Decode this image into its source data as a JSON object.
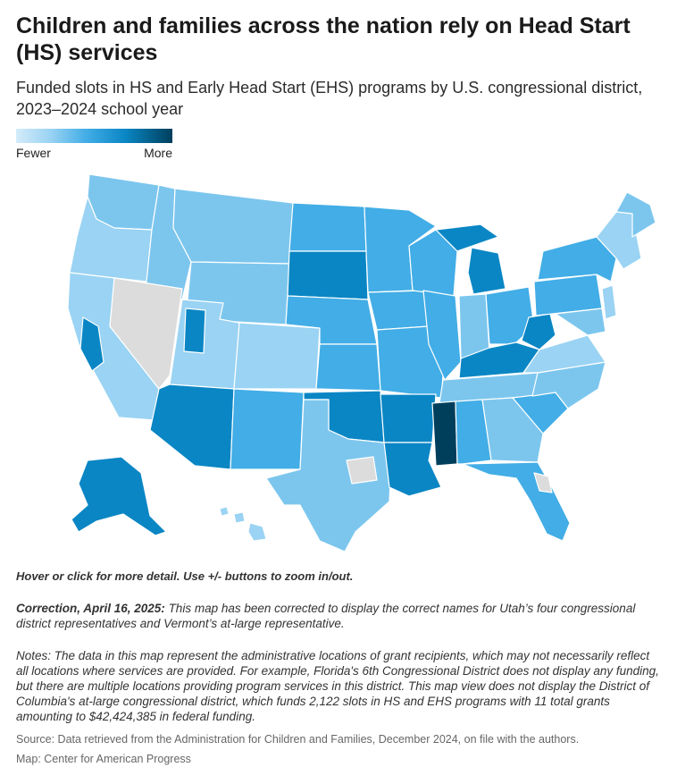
{
  "title": "Children and families across the nation rely on Head Start (HS) services",
  "subtitle": "Funded slots in HS and Early Head Start (EHS) programs by U.S. congressional district, 2023–2024 school year",
  "legend": {
    "low_label": "Fewer",
    "high_label": "More",
    "colors": [
      "#d4ecfa",
      "#9ad3f3",
      "#42ade6",
      "#0a86c4",
      "#003f5c"
    ],
    "no_data_color": "#dcdcdc"
  },
  "instructions": "Hover or click for more detail. Use +/- buttons to zoom in/out.",
  "correction": {
    "label": "Correction, April 16, 2025:",
    "text": " This map has been corrected to display the correct names for Utah’s four congressional district representatives and Vermont’s at-large representative."
  },
  "notes": "Notes: The data in this map represent the administrative locations of grant recipients, which may not necessarily reflect all locations where services are provided. For example, Florida's 6th Congressional District does not display any funding, but there are multiple locations providing program services in this district. This map view does not display the District of Columbia's at-large congressional district, which funds 2,122 slots in HS and EHS programs with 11 total grants amounting to $42,424,385 in federal funding.",
  "source": "Source: Data retrieved from the Administration for Children and Families, December 2024, on file with the authors.",
  "credit": "Map: Center for American Progress"
}
